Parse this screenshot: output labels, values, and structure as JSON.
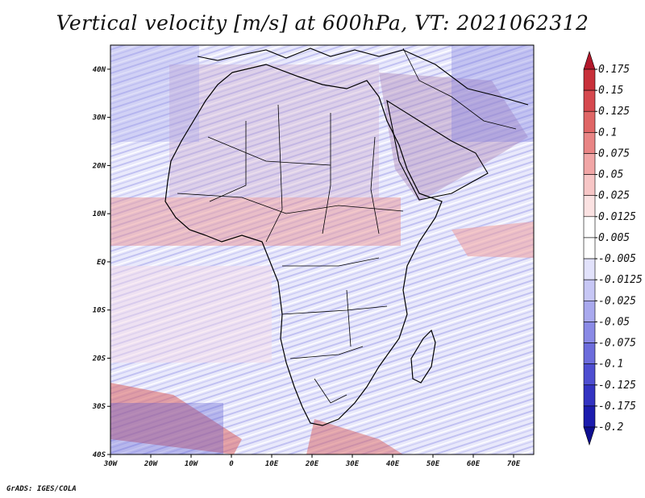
{
  "title": "Vertical velocity [m/s] at 600hPa, VT: 2021062312",
  "credit": "GrADS: IGES/COLA",
  "map": {
    "lon_range": [
      -30,
      75
    ],
    "lat_range": [
      -40,
      45
    ],
    "lon_ticks": [
      {
        "value": -30,
        "label": "30W"
      },
      {
        "value": -20,
        "label": "20W"
      },
      {
        "value": -10,
        "label": "10W"
      },
      {
        "value": 0,
        "label": "0"
      },
      {
        "value": 10,
        "label": "10E"
      },
      {
        "value": 20,
        "label": "20E"
      },
      {
        "value": 30,
        "label": "30E"
      },
      {
        "value": 40,
        "label": "40E"
      },
      {
        "value": 50,
        "label": "50E"
      },
      {
        "value": 60,
        "label": "60E"
      },
      {
        "value": 70,
        "label": "70E"
      }
    ],
    "lat_ticks": [
      {
        "value": 40,
        "label": "40N"
      },
      {
        "value": 30,
        "label": "30N"
      },
      {
        "value": 20,
        "label": "20N"
      },
      {
        "value": 10,
        "label": "10N"
      },
      {
        "value": 0,
        "label": "EQ"
      },
      {
        "value": -10,
        "label": "10S"
      },
      {
        "value": -20,
        "label": "20S"
      },
      {
        "value": -30,
        "label": "30S"
      },
      {
        "value": -40,
        "label": "40S"
      }
    ],
    "region": "Africa and Middle East"
  },
  "colorbar": {
    "labels": [
      "0.175",
      "0.15",
      "0.125",
      "0.1",
      "0.075",
      "0.05",
      "0.025",
      "0.0125",
      "0.005",
      "-0.005",
      "-0.0125",
      "-0.025",
      "-0.05",
      "-0.075",
      "-0.1",
      "-0.125",
      "-0.175",
      "-0.2"
    ],
    "colors": [
      "#b2182b",
      "#c8303a",
      "#d6494f",
      "#e06666",
      "#e98585",
      "#f1a6a6",
      "#f7c6c6",
      "#fbe2e2",
      "#ffffff",
      "#ffffff",
      "#e2e2fb",
      "#c7c7f5",
      "#a9a9ee",
      "#8a8ae6",
      "#6c6cdc",
      "#4e4ed1",
      "#3333c2",
      "#1c1cae",
      "#0e0e90"
    ]
  }
}
